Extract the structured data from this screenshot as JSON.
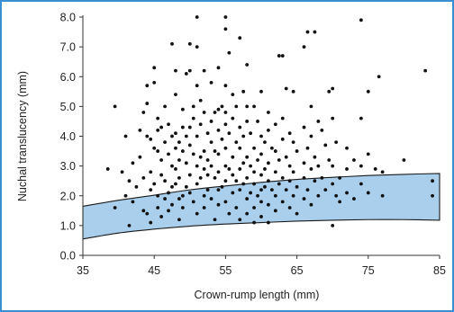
{
  "chart_data": {
    "type": "scatter",
    "title": "",
    "xlabel": "Crown-rump length (mm)",
    "ylabel": "Nuchal translucency (mm)",
    "xlim": [
      35,
      85
    ],
    "ylim": [
      0,
      8
    ],
    "xticks": [
      35,
      45,
      55,
      65,
      75,
      85
    ],
    "xtick_labels": [
      "35",
      "45",
      "55",
      "65",
      "75",
      "85"
    ],
    "yticks": [
      0,
      1,
      2,
      3,
      4,
      5,
      6,
      7,
      8
    ],
    "ytick_labels": [
      "0.0",
      "1.0",
      "2.0",
      "3.0",
      "4.0",
      "5.0",
      "6.0",
      "7.0",
      "8.0"
    ],
    "grid": false,
    "colors": {
      "band_fill": "#a9cfec",
      "band_stroke": "#1a1a1a",
      "points": "#111111",
      "frame": "#3a8fd1"
    },
    "reference_band": {
      "x": [
        35,
        40,
        45,
        50,
        55,
        60,
        65,
        70,
        75,
        80,
        85
      ],
      "upper": [
        1.65,
        1.85,
        2.02,
        2.2,
        2.33,
        2.45,
        2.55,
        2.62,
        2.68,
        2.72,
        2.75
      ],
      "lower": [
        0.55,
        0.75,
        0.88,
        0.98,
        1.05,
        1.1,
        1.15,
        1.18,
        1.2,
        1.2,
        1.18
      ]
    },
    "series": [
      {
        "values": [
          [
            38.5,
            2.9
          ],
          [
            39.5,
            5.0
          ],
          [
            39.5,
            1.6
          ],
          [
            40.5,
            2.8
          ],
          [
            41,
            2.0
          ],
          [
            41,
            4.0
          ],
          [
            41.5,
            1.0
          ],
          [
            41.5,
            2.5
          ],
          [
            42,
            1.8
          ],
          [
            42,
            3.1
          ],
          [
            42.5,
            2.3
          ],
          [
            43,
            4.2
          ],
          [
            43,
            3.3
          ],
          [
            43.5,
            4.8
          ],
          [
            43.5,
            2.6
          ],
          [
            43.5,
            1.5
          ],
          [
            44,
            5.7
          ],
          [
            44,
            4.0
          ],
          [
            44,
            5.1
          ],
          [
            44,
            1.4
          ],
          [
            44.5,
            3.9
          ],
          [
            44.5,
            2.8
          ],
          [
            44.5,
            2.2
          ],
          [
            44.5,
            1.1
          ],
          [
            45,
            6.3
          ],
          [
            45,
            5.8
          ],
          [
            45,
            3.6
          ],
          [
            45,
            2.4
          ],
          [
            45.5,
            4.6
          ],
          [
            45.5,
            4.2
          ],
          [
            45.5,
            3.5
          ],
          [
            45.5,
            2.0
          ],
          [
            45.5,
            1.6
          ],
          [
            46,
            4.3
          ],
          [
            46,
            3.2
          ],
          [
            46,
            2.7
          ],
          [
            46,
            1.3
          ],
          [
            46.5,
            5.0
          ],
          [
            46.5,
            3.8
          ],
          [
            46.5,
            2.5
          ],
          [
            46.5,
            1.9
          ],
          [
            47,
            4.4
          ],
          [
            47,
            3.4
          ],
          [
            47,
            2.1
          ],
          [
            47,
            1.5
          ],
          [
            47.5,
            7.1
          ],
          [
            47.5,
            4.0
          ],
          [
            47.5,
            3.0
          ],
          [
            47.5,
            2.3
          ],
          [
            47.5,
            1.7
          ],
          [
            48,
            6.2
          ],
          [
            48,
            5.4
          ],
          [
            48,
            4.1
          ],
          [
            48,
            3.6
          ],
          [
            48,
            2.9
          ],
          [
            48,
            2.4
          ],
          [
            48.5,
            3.8
          ],
          [
            48.5,
            3.2
          ],
          [
            48.5,
            2.6
          ],
          [
            48.5,
            1.9
          ],
          [
            48.5,
            1.2
          ],
          [
            49,
            4.9
          ],
          [
            49,
            4.3
          ],
          [
            49,
            3.5
          ],
          [
            49,
            2.0
          ],
          [
            49,
            1.6
          ],
          [
            49.5,
            6.1
          ],
          [
            49.5,
            4.0
          ],
          [
            49.5,
            3.1
          ],
          [
            49.5,
            2.3
          ],
          [
            50,
            7.1
          ],
          [
            50,
            6.2
          ],
          [
            50,
            4.3
          ],
          [
            50,
            3.7
          ],
          [
            50,
            2.7
          ],
          [
            50,
            2.1
          ],
          [
            50.5,
            5.0
          ],
          [
            50.5,
            4.6
          ],
          [
            50.5,
            3.4
          ],
          [
            50.5,
            1.8
          ],
          [
            51,
            8.0
          ],
          [
            51,
            7.0
          ],
          [
            51,
            5.7
          ],
          [
            51,
            4.0
          ],
          [
            51,
            3.0
          ],
          [
            51,
            2.4
          ],
          [
            51,
            1.4
          ],
          [
            51.5,
            5.2
          ],
          [
            51.5,
            4.4
          ],
          [
            51.5,
            3.3
          ],
          [
            51.5,
            2.6
          ],
          [
            52,
            6.2
          ],
          [
            52,
            4.8
          ],
          [
            52,
            3.5
          ],
          [
            52,
            2.9
          ],
          [
            52,
            2.0
          ],
          [
            52,
            1.6
          ],
          [
            52.5,
            4.1
          ],
          [
            52.5,
            3.2
          ],
          [
            52.5,
            2.7
          ],
          [
            52.5,
            2.2
          ],
          [
            53,
            5.8
          ],
          [
            53,
            4.5
          ],
          [
            53,
            3.8
          ],
          [
            53,
            3.0
          ],
          [
            53,
            1.9
          ],
          [
            53.5,
            4.8
          ],
          [
            53.5,
            3.5
          ],
          [
            53.5,
            2.6
          ],
          [
            53.5,
            1.2
          ],
          [
            54,
            6.3
          ],
          [
            54,
            4.9
          ],
          [
            54,
            4.2
          ],
          [
            54,
            3.4
          ],
          [
            54,
            2.8
          ],
          [
            54,
            2.2
          ],
          [
            54,
            1.7
          ],
          [
            54.5,
            5.0
          ],
          [
            54.5,
            3.9
          ],
          [
            54.5,
            2.3
          ],
          [
            55,
            8.0
          ],
          [
            55,
            7.6
          ],
          [
            55,
            5.7
          ],
          [
            55,
            4.8
          ],
          [
            55,
            4.4
          ],
          [
            55,
            3.6
          ],
          [
            55,
            3.0
          ],
          [
            55,
            2.5
          ],
          [
            55,
            1.8
          ],
          [
            55.5,
            6.8
          ],
          [
            55.5,
            4.1
          ],
          [
            55.5,
            2.9
          ],
          [
            55.5,
            1.4
          ],
          [
            56,
            5.4
          ],
          [
            56,
            4.6
          ],
          [
            56,
            3.3
          ],
          [
            56,
            2.7
          ],
          [
            56,
            2.1
          ],
          [
            56.5,
            5.0
          ],
          [
            56.5,
            3.8
          ],
          [
            56.5,
            2.5
          ],
          [
            56.5,
            1.6
          ],
          [
            57,
            7.3
          ],
          [
            57,
            4.3
          ],
          [
            57,
            3.6
          ],
          [
            57,
            2.9
          ],
          [
            57,
            2.2
          ],
          [
            57,
            1.2
          ],
          [
            57.5,
            5.5
          ],
          [
            57.5,
            4.0
          ],
          [
            57.5,
            3.1
          ],
          [
            57.5,
            2.4
          ],
          [
            58,
            6.4
          ],
          [
            58,
            5.0
          ],
          [
            58,
            4.5
          ],
          [
            58,
            3.3
          ],
          [
            58,
            2.6
          ],
          [
            58,
            1.9
          ],
          [
            58,
            1.4
          ],
          [
            58.5,
            4.1
          ],
          [
            58.5,
            3.0
          ],
          [
            58.5,
            2.1
          ],
          [
            59,
            5.0
          ],
          [
            59,
            3.6
          ],
          [
            59,
            2.8
          ],
          [
            59,
            2.4
          ],
          [
            59,
            1.6
          ],
          [
            59,
            1.1
          ],
          [
            59.5,
            4.5
          ],
          [
            59.5,
            3.2
          ],
          [
            59.5,
            2.0
          ],
          [
            60,
            5.5
          ],
          [
            60,
            4.0
          ],
          [
            60,
            3.4
          ],
          [
            60,
            2.7
          ],
          [
            60,
            2.2
          ],
          [
            60,
            1.8
          ],
          [
            60,
            1.3
          ],
          [
            60.5,
            3.8
          ],
          [
            60.5,
            2.9
          ],
          [
            60.5,
            2.3
          ],
          [
            61,
            4.8
          ],
          [
            61,
            4.2
          ],
          [
            61,
            3.1
          ],
          [
            61,
            2.5
          ],
          [
            61,
            1.7
          ],
          [
            61,
            1.1
          ],
          [
            61.5,
            3.6
          ],
          [
            61.5,
            2.2
          ],
          [
            62,
            4.4
          ],
          [
            62,
            3.5
          ],
          [
            62,
            2.8
          ],
          [
            62,
            2.0
          ],
          [
            62,
            1.5
          ],
          [
            62.5,
            6.7
          ],
          [
            62.5,
            3.2
          ],
          [
            62.5,
            2.4
          ],
          [
            63,
            6.7
          ],
          [
            63,
            4.6
          ],
          [
            63,
            3.9
          ],
          [
            63,
            2.6
          ],
          [
            63,
            1.8
          ],
          [
            63.5,
            5.6
          ],
          [
            63.5,
            3.3
          ],
          [
            63.5,
            2.2
          ],
          [
            64,
            4.1
          ],
          [
            64,
            3.0
          ],
          [
            64,
            2.5
          ],
          [
            64,
            1.6
          ],
          [
            64.5,
            5.5
          ],
          [
            64.5,
            3.8
          ],
          [
            64.5,
            2.8
          ],
          [
            64.5,
            2.0
          ],
          [
            65,
            3.5
          ],
          [
            65,
            2.3
          ],
          [
            65,
            1.4
          ],
          [
            66,
            7.0
          ],
          [
            66,
            4.3
          ],
          [
            66,
            3.1
          ],
          [
            66,
            2.6
          ],
          [
            66,
            1.9
          ],
          [
            66.5,
            7.5
          ],
          [
            66.5,
            3.6
          ],
          [
            66.5,
            2.2
          ],
          [
            67,
            5.0
          ],
          [
            67,
            4.0
          ],
          [
            67,
            2.9
          ],
          [
            67,
            1.7
          ],
          [
            67.5,
            7.5
          ],
          [
            67.5,
            3.3
          ],
          [
            67.5,
            2.5
          ],
          [
            68,
            4.5
          ],
          [
            68,
            3.0
          ],
          [
            68,
            2.0
          ],
          [
            68.5,
            4.2
          ],
          [
            68.5,
            2.6
          ],
          [
            69,
            3.7
          ],
          [
            69,
            2.2
          ],
          [
            69.5,
            5.5
          ],
          [
            69.5,
            3.2
          ],
          [
            70,
            5.6
          ],
          [
            70,
            4.6
          ],
          [
            70,
            3.0
          ],
          [
            70,
            2.4
          ],
          [
            70,
            1.0
          ],
          [
            70.5,
            3.8
          ],
          [
            70.5,
            2.0
          ],
          [
            71,
            2.6
          ],
          [
            71,
            1.8
          ],
          [
            72,
            3.6
          ],
          [
            72,
            2.9
          ],
          [
            72,
            2.1
          ],
          [
            73,
            3.2
          ],
          [
            73,
            1.9
          ],
          [
            74,
            7.9
          ],
          [
            74,
            4.6
          ],
          [
            74,
            3.0
          ],
          [
            74,
            2.4
          ],
          [
            75,
            5.5
          ],
          [
            75,
            3.4
          ],
          [
            75,
            2.1
          ],
          [
            76,
            2.9
          ],
          [
            76.5,
            6.0
          ],
          [
            77,
            2.8
          ],
          [
            77,
            2.0
          ],
          [
            80,
            3.2
          ],
          [
            83,
            6.2
          ],
          [
            84,
            2.5
          ],
          [
            84,
            2.0
          ]
        ]
      }
    ]
  }
}
